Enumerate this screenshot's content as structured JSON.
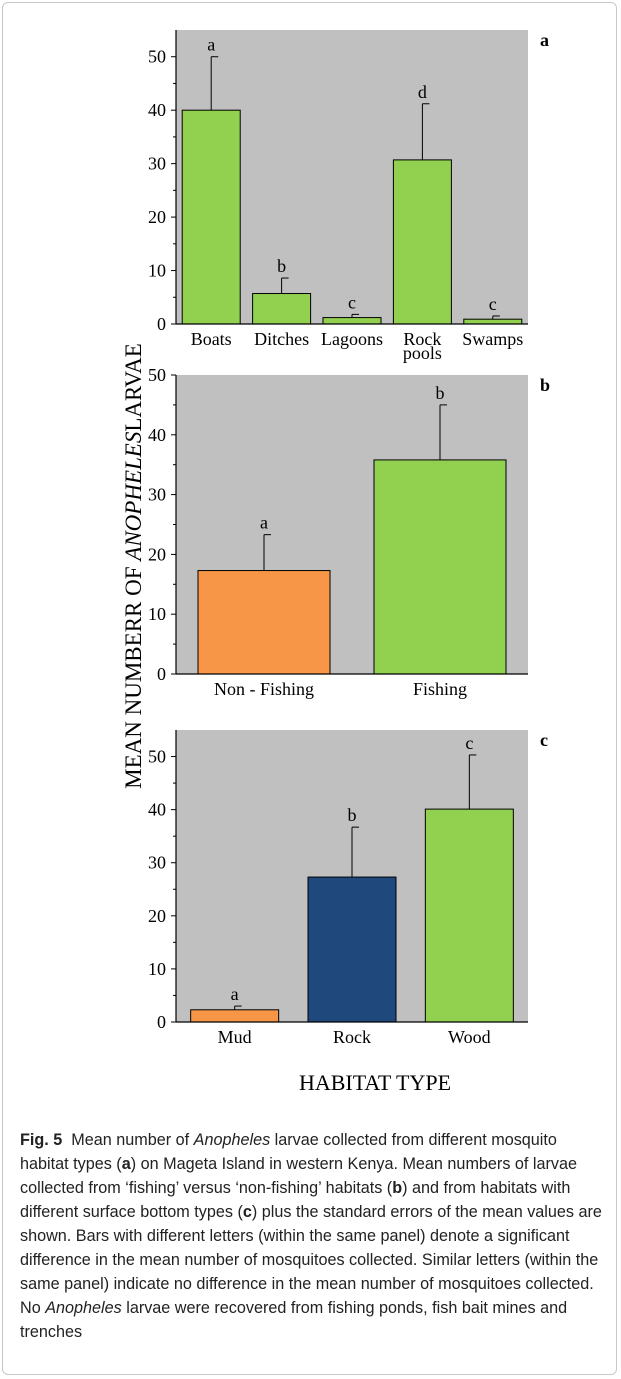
{
  "figure": {
    "ylabel_prefix": "MEAN NUMBERR OF ",
    "ylabel_italic": "ANOPHELES",
    "ylabel_suffix": "LARVAE",
    "xlabel": "HABITAT TYPE"
  },
  "colors": {
    "panel_background": "#c0c0c0",
    "green": "#92d050",
    "orange": "#f79646",
    "navy": "#1f497d"
  },
  "chart_data": [
    {
      "panel": "a",
      "type": "bar",
      "categories": [
        "Boats",
        "Ditches",
        "Lagoons",
        "Rock pools",
        "Swamps"
      ],
      "category_lines": [
        [
          "Boats"
        ],
        [
          "Ditches"
        ],
        [
          "Lagoons"
        ],
        [
          "Rock",
          "pools"
        ],
        [
          "Swamps"
        ]
      ],
      "values": [
        40,
        5.7,
        1.2,
        30.7,
        0.9
      ],
      "errors": [
        10,
        2.9,
        0.6,
        10.5,
        0.6
      ],
      "letters": [
        "a",
        "b",
        "c",
        "d",
        "c"
      ],
      "colors": [
        "#92d050",
        "#92d050",
        "#92d050",
        "#92d050",
        "#92d050"
      ],
      "ylim": [
        0,
        55
      ],
      "yticks": [
        0,
        10,
        20,
        30,
        40,
        50
      ],
      "grid": false
    },
    {
      "panel": "b",
      "type": "bar",
      "categories": [
        "Non - Fishing",
        "Fishing"
      ],
      "category_lines": [
        [
          "Non - Fishing"
        ],
        [
          "Fishing"
        ]
      ],
      "values": [
        17.3,
        35.8
      ],
      "errors": [
        6,
        9.2
      ],
      "letters": [
        "a",
        "b"
      ],
      "colors": [
        "#f79646",
        "#92d050"
      ],
      "ylim": [
        0,
        50
      ],
      "yticks": [
        0,
        10,
        20,
        30,
        40,
        50
      ],
      "grid": false
    },
    {
      "panel": "c",
      "type": "bar",
      "categories": [
        "Mud",
        "Rock",
        "Wood"
      ],
      "category_lines": [
        [
          "Mud"
        ],
        [
          "Rock"
        ],
        [
          "Wood"
        ]
      ],
      "values": [
        2.3,
        27.3,
        40.1
      ],
      "errors": [
        0.7,
        9.4,
        10.2
      ],
      "letters": [
        "a",
        "b",
        "c"
      ],
      "colors": [
        "#f79646",
        "#1f497d",
        "#92d050"
      ],
      "ylim": [
        0,
        55
      ],
      "yticks": [
        0,
        10,
        20,
        30,
        40,
        50
      ],
      "grid": false
    }
  ],
  "caption": {
    "label": "Fig. 5",
    "t1": "Mean number of ",
    "t1_italic": "Anopheles",
    "t2": " larvae collected from different mosquito habitat types (",
    "p_a": "a",
    "t3": ") on Mageta Island in western Kenya. Mean numbers of larvae collected from ‘fishing’ versus ‘non-fishing’ habitats (",
    "p_b": "b",
    "t4": ") and from habitats with different surface bottom types (",
    "p_c": "c",
    "t5": ") plus the standard errors of the mean values are shown. Bars with different letters (within the same panel) denote a significant difference in the mean number of mosquitoes collected. Similar letters (within the same panel) indicate no difference in the mean number of mosquitoes collected. No ",
    "t5_italic": "Anopheles",
    "t6": " larvae were recovered from fishing ponds, fish bait mines and trenches"
  }
}
